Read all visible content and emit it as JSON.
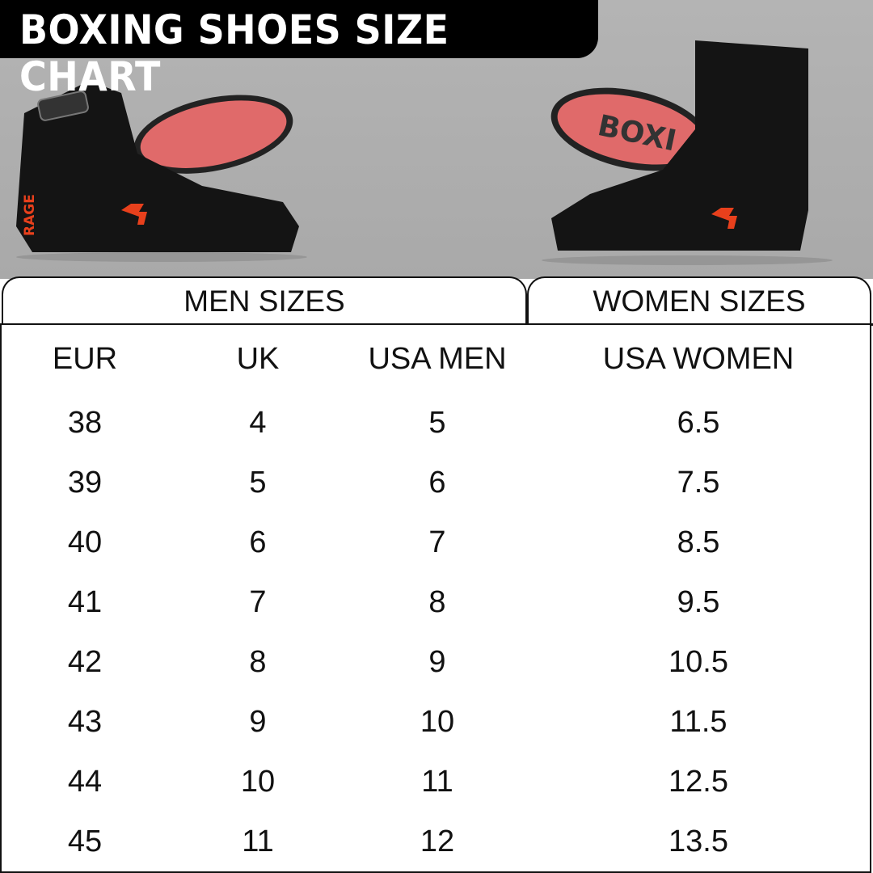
{
  "title": "BOXING SHOES SIZE CHART",
  "images": {
    "left_shoe": {
      "brand_logo": "FIST RAGE",
      "side_mark": "RAGE",
      "icon": "fist-rage-logo"
    },
    "right_shoe": {
      "sole_text": "BOXI",
      "icon": "fist-rage-logo"
    }
  },
  "colors": {
    "title_bg": "#000000",
    "background": "#adadad",
    "sole": "#e06a6a",
    "logo_red": "#e8401c"
  },
  "table": {
    "groups": [
      "MEN SIZES",
      "WOMEN SIZES"
    ],
    "columns": [
      "EUR",
      "UK",
      "USA MEN",
      "USA WOMEN"
    ],
    "rows": [
      [
        "38",
        "4",
        "5",
        "6.5"
      ],
      [
        "39",
        "5",
        "6",
        "7.5"
      ],
      [
        "40",
        "6",
        "7",
        "8.5"
      ],
      [
        "41",
        "7",
        "8",
        "9.5"
      ],
      [
        "42",
        "8",
        "9",
        "10.5"
      ],
      [
        "43",
        "9",
        "10",
        "11.5"
      ],
      [
        "44",
        "10",
        "11",
        "12.5"
      ],
      [
        "45",
        "11",
        "12",
        "13.5"
      ]
    ]
  }
}
